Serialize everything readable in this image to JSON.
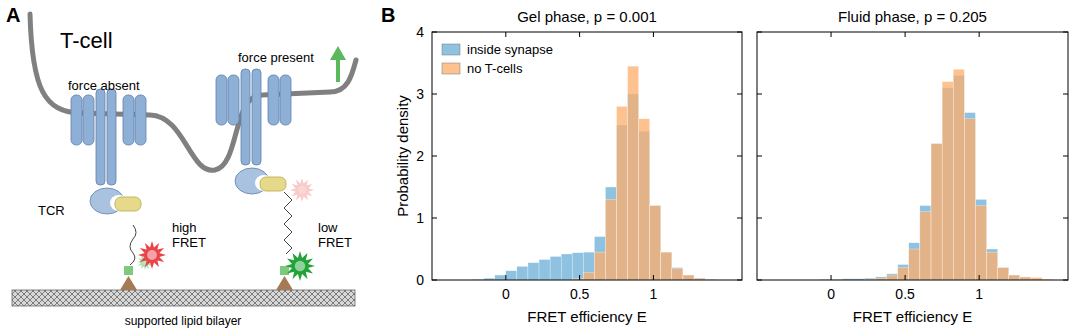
{
  "panel_labels": [
    "A",
    "B"
  ],
  "diagram": {
    "cell": "T-cell",
    "left_state": "force absent",
    "right_state": "force present",
    "receptor": "TCR",
    "left_fret": [
      "high",
      "FRET"
    ],
    "right_fret": [
      "low",
      "FRET"
    ],
    "substrate": "supported lipid bilayer"
  },
  "chart_data": [
    {
      "type": "histogram",
      "title": "Gel phase, p = 0.001",
      "x_label": "FRET efficiency E",
      "y_label": "Probability density",
      "bins": [
        -0.3,
        -0.225,
        -0.15,
        -0.075,
        0,
        0.075,
        0.15,
        0.225,
        0.3,
        0.375,
        0.45,
        0.525,
        0.6,
        0.675,
        0.75,
        0.825,
        0.9,
        0.975,
        1.05,
        1.125,
        1.2,
        1.275,
        1.35,
        1.425,
        1.5
      ],
      "series": [
        {
          "name": "inside synapse",
          "color": "#6aaed6",
          "values": [
            0,
            0.01,
            0.03,
            0.08,
            0.15,
            0.22,
            0.28,
            0.33,
            0.38,
            0.42,
            0.44,
            0.45,
            0.7,
            1.5,
            2.5,
            3.0,
            2.4,
            1.2,
            0.45,
            0.2,
            0.08,
            0.03,
            0.01,
            0
          ]
        },
        {
          "name": "no T-cells",
          "color": "#fdae6b",
          "values": [
            0,
            0,
            0,
            0,
            0,
            0,
            0,
            0,
            0,
            0,
            0.02,
            0.12,
            0.45,
            1.3,
            2.8,
            3.45,
            2.6,
            1.2,
            0.45,
            0.18,
            0.08,
            0.03,
            0.01,
            0
          ]
        }
      ],
      "xlim": [
        -0.5,
        1.6
      ],
      "ylim": [
        0,
        4
      ],
      "xticks": [
        0,
        0.5,
        1
      ],
      "yticks": [
        0,
        1,
        2,
        3,
        4
      ],
      "legend": "upper left",
      "grid": false
    },
    {
      "type": "histogram",
      "title": "Fluid phase, p = 0.205",
      "x_label": "FRET efficiency E",
      "bins": [
        -0.3,
        -0.225,
        -0.15,
        -0.075,
        0,
        0.075,
        0.15,
        0.225,
        0.3,
        0.375,
        0.45,
        0.525,
        0.6,
        0.675,
        0.75,
        0.825,
        0.9,
        0.975,
        1.05,
        1.125,
        1.2,
        1.275,
        1.35,
        1.425,
        1.5
      ],
      "series": [
        {
          "color": "#6aaed6",
          "values": [
            0,
            0,
            0,
            0.01,
            0.01,
            0.02,
            0.02,
            0.03,
            0.05,
            0.1,
            0.25,
            0.6,
            1.2,
            2.2,
            3.1,
            3.3,
            2.7,
            1.3,
            0.5,
            0.2,
            0.08,
            0.04,
            0.02,
            0.01
          ]
        },
        {
          "color": "#fdae6b",
          "values": [
            0,
            0,
            0,
            0,
            0,
            0,
            0,
            0.01,
            0.03,
            0.08,
            0.2,
            0.5,
            1.1,
            2.2,
            3.2,
            3.4,
            2.6,
            1.2,
            0.45,
            0.2,
            0.08,
            0.05,
            0.04,
            0.01
          ]
        }
      ],
      "xlim": [
        -0.5,
        1.6
      ],
      "ylim": [
        0,
        4
      ],
      "xticks": [
        0,
        0.5,
        1
      ],
      "yticks": [
        0,
        1,
        2,
        3,
        4
      ],
      "tick_labels": "x",
      "grid": false
    }
  ]
}
